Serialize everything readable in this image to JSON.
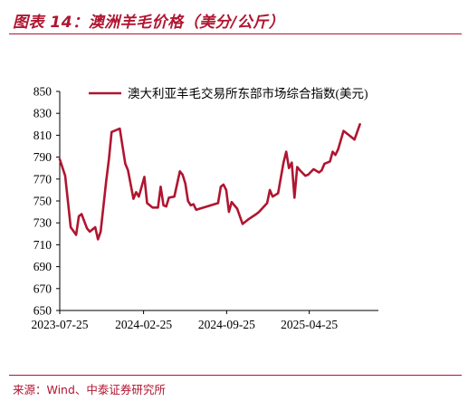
{
  "figure": {
    "title": "图表 14：澳洲羊毛价格（美分/公斤）",
    "source": "来源：Wind、中泰证券研究所",
    "accent_color": "#b01530"
  },
  "chart_data": {
    "type": "line",
    "title": "",
    "xlabel": "",
    "ylabel": "",
    "ylim": [
      650,
      850
    ],
    "yticks": [
      650,
      670,
      690,
      710,
      730,
      750,
      770,
      790,
      810,
      830,
      850
    ],
    "xticks": [
      "2023-07-25",
      "2024-02-25",
      "2024-09-25",
      "2025-04-25"
    ],
    "xlim": [
      "2023-07-25",
      "2025-10-10"
    ],
    "legend_position": "top",
    "grid": false,
    "series": [
      {
        "name": "澳大利亚羊毛交易所东部市场综合指数(美元)",
        "color": "#b01530",
        "points": [
          [
            "2023-07-25",
            788
          ],
          [
            "2023-08-08",
            773
          ],
          [
            "2023-08-22",
            726
          ],
          [
            "2023-09-05",
            719
          ],
          [
            "2023-09-12",
            736
          ],
          [
            "2023-09-19",
            738
          ],
          [
            "2023-10-03",
            725
          ],
          [
            "2023-10-10",
            722
          ],
          [
            "2023-10-24",
            726
          ],
          [
            "2023-10-31",
            715
          ],
          [
            "2023-11-07",
            722
          ],
          [
            "2023-11-21",
            768
          ],
          [
            "2023-11-28",
            788
          ],
          [
            "2023-12-05",
            813
          ],
          [
            "2023-12-26",
            816
          ],
          [
            "2024-01-09",
            784
          ],
          [
            "2024-01-16",
            778
          ],
          [
            "2024-01-30",
            752
          ],
          [
            "2024-02-06",
            758
          ],
          [
            "2024-02-13",
            754
          ],
          [
            "2024-02-27",
            772
          ],
          [
            "2024-03-05",
            748
          ],
          [
            "2024-03-19",
            744
          ],
          [
            "2024-04-02",
            744
          ],
          [
            "2024-04-09",
            763
          ],
          [
            "2024-04-16",
            746
          ],
          [
            "2024-04-23",
            745
          ],
          [
            "2024-04-30",
            753
          ],
          [
            "2024-05-14",
            754
          ],
          [
            "2024-05-28",
            777
          ],
          [
            "2024-06-04",
            774
          ],
          [
            "2024-06-11",
            766
          ],
          [
            "2024-06-18",
            750
          ],
          [
            "2024-06-25",
            746
          ],
          [
            "2024-07-02",
            747
          ],
          [
            "2024-07-09",
            742
          ],
          [
            "2024-09-03",
            748
          ],
          [
            "2024-09-10",
            763
          ],
          [
            "2024-09-17",
            765
          ],
          [
            "2024-09-24",
            760
          ],
          [
            "2024-10-01",
            740
          ],
          [
            "2024-10-08",
            749
          ],
          [
            "2024-10-22",
            743
          ],
          [
            "2024-11-05",
            729
          ],
          [
            "2024-11-19",
            733
          ],
          [
            "2024-12-10",
            738
          ],
          [
            "2024-12-17",
            740
          ],
          [
            "2025-01-07",
            748
          ],
          [
            "2025-01-14",
            760
          ],
          [
            "2025-01-21",
            754
          ],
          [
            "2025-02-04",
            757
          ],
          [
            "2025-02-18",
            785
          ],
          [
            "2025-02-25",
            795
          ],
          [
            "2025-03-04",
            780
          ],
          [
            "2025-03-11",
            785
          ],
          [
            "2025-03-18",
            753
          ],
          [
            "2025-03-25",
            781
          ],
          [
            "2025-04-01",
            778
          ],
          [
            "2025-04-15",
            773
          ],
          [
            "2025-04-22",
            774
          ],
          [
            "2025-05-06",
            779
          ],
          [
            "2025-05-20",
            776
          ],
          [
            "2025-05-27",
            778
          ],
          [
            "2025-06-03",
            784
          ],
          [
            "2025-06-17",
            786
          ],
          [
            "2025-06-24",
            795
          ],
          [
            "2025-07-01",
            792
          ],
          [
            "2025-07-08",
            797
          ],
          [
            "2025-07-22",
            814
          ],
          [
            "2025-08-05",
            810
          ],
          [
            "2025-08-19",
            806
          ],
          [
            "2025-09-02",
            820
          ]
        ]
      }
    ]
  }
}
